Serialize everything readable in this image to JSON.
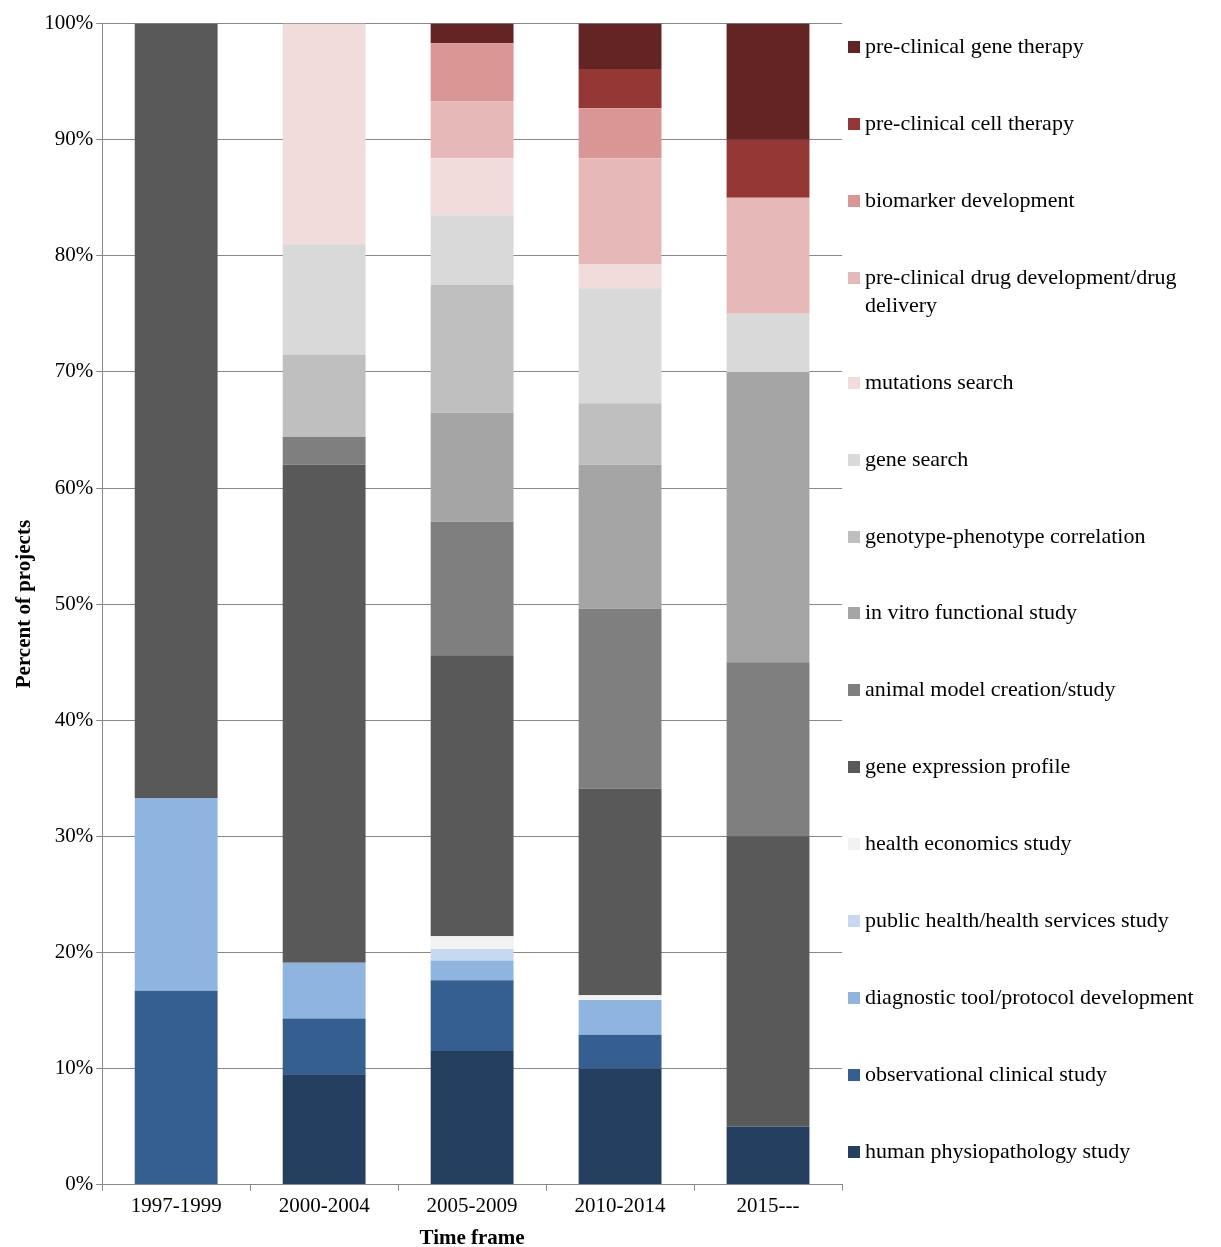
{
  "chart_data": {
    "type": "bar",
    "stacked": true,
    "xlabel": "Time frame",
    "ylabel": "Percent of projects",
    "categories": [
      "1997-1999",
      "2000-2004",
      "2005-2009",
      "2010-2014",
      "2015---"
    ],
    "ylim": [
      0,
      100
    ],
    "yticks": [
      {
        "value": 0,
        "label": "0%"
      },
      {
        "value": 10,
        "label": "10%"
      },
      {
        "value": 20,
        "label": "20%"
      },
      {
        "value": 30,
        "label": "30%"
      },
      {
        "value": 40,
        "label": "40%"
      },
      {
        "value": 50,
        "label": "50%"
      },
      {
        "value": 60,
        "label": "60%"
      },
      {
        "value": 70,
        "label": "70%"
      },
      {
        "value": 80,
        "label": "80%"
      },
      {
        "value": 90,
        "label": "90%"
      },
      {
        "value": 100,
        "label": "100%"
      }
    ],
    "grid": "y",
    "legend": "right",
    "series": [
      {
        "name": "human physiopathology study",
        "color": "#243f60",
        "values": [
          0,
          9.5,
          11.5,
          10.0,
          5
        ]
      },
      {
        "name": "observational clinical study",
        "color": "#355e91",
        "values": [
          16.7,
          4.8,
          6.1,
          2.9,
          0
        ]
      },
      {
        "name": "diagnostic tool/protocol development",
        "color": "#8eb4e0",
        "values": [
          16.6,
          4.8,
          1.7,
          3.0,
          0
        ]
      },
      {
        "name": "public health/health services study",
        "color": "#c6d9f0",
        "values": [
          0,
          0,
          1.0,
          0,
          0
        ]
      },
      {
        "name": "health economics study",
        "color": "#f2f2f2",
        "values": [
          0,
          0,
          1.1,
          0.4,
          0
        ]
      },
      {
        "name": "gene expression profile",
        "color": "#595959",
        "values": [
          66.7,
          42.9,
          24.2,
          17.8,
          25
        ]
      },
      {
        "name": "animal model creation/study",
        "color": "#7f7f7f",
        "values": [
          0,
          2.4,
          11.5,
          15.5,
          15
        ]
      },
      {
        "name": "in vitro functional study",
        "color": "#a5a5a5",
        "values": [
          0,
          0,
          9.4,
          12.4,
          25
        ]
      },
      {
        "name": "genotype-phenotype correlation",
        "color": "#bfbfbf",
        "values": [
          0,
          7.1,
          11.0,
          5.3,
          0
        ]
      },
      {
        "name": "gene search",
        "color": "#d9d9d9",
        "values": [
          0,
          9.5,
          6.0,
          9.9,
          5
        ]
      },
      {
        "name": "mutations search",
        "color": "#f2dcdb",
        "values": [
          0,
          19.0,
          4.9,
          2.1,
          0
        ]
      },
      {
        "name": "pre-clinical drug development/drug delivery",
        "color": "#e6b9b8",
        "values": [
          0,
          0,
          4.9,
          9.1,
          10
        ]
      },
      {
        "name": "biomarker development",
        "color": "#d99694",
        "values": [
          0,
          0,
          5.0,
          4.3,
          0
        ]
      },
      {
        "name": "pre-clinical cell therapy",
        "color": "#953735",
        "values": [
          0,
          0,
          0,
          3.4,
          5
        ]
      },
      {
        "name": "pre-clinical gene therapy",
        "color": "#632523",
        "values": [
          0,
          0,
          1.7,
          3.9,
          10
        ]
      }
    ]
  }
}
